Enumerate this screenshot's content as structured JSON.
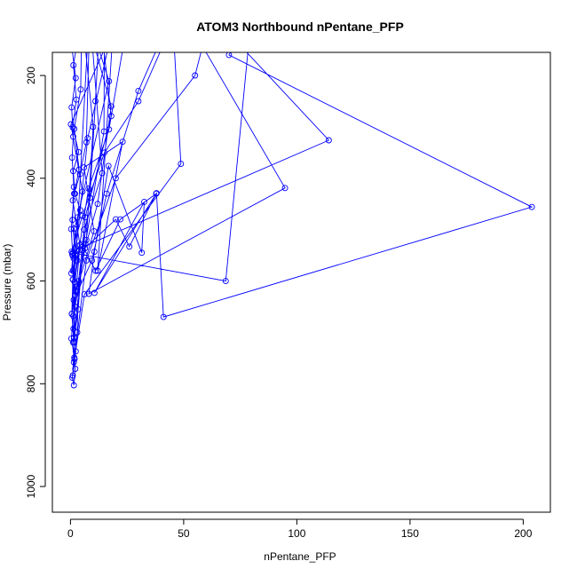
{
  "chart_data": {
    "type": "line",
    "title": "ATOM3 Northbound nPentane_PFP",
    "xlabel": "nPentane_PFP",
    "ylabel": "Pressure (mbar)",
    "xlim": [
      -8,
      212
    ],
    "ylim": [
      1050,
      155
    ],
    "y_reversed": true,
    "x_ticks": [
      0,
      50,
      100,
      150,
      200
    ],
    "y_ticks": [
      200,
      400,
      600,
      800,
      1000
    ],
    "grid": false,
    "legend": "none",
    "series": [
      {
        "color": "#0000ff",
        "marker": "open-circle",
        "points": [
          [
            0.3,
            135
          ],
          [
            2.3,
            205
          ],
          [
            0.5,
            262
          ],
          [
            1.2,
            319
          ],
          [
            0.7,
            360
          ],
          [
            1.5,
            417
          ],
          [
            0.9,
            481
          ],
          [
            2.0,
            548
          ],
          [
            1.0,
            597
          ],
          [
            0.6,
            664
          ],
          [
            1.4,
            718
          ],
          [
            2.1,
            771
          ],
          [
            1.5,
            803
          ],
          [
            0.8,
            788
          ],
          [
            1.8,
            752
          ],
          [
            0.4,
            712
          ],
          [
            1.2,
            668
          ],
          [
            2.4,
            620
          ],
          [
            1.0,
            580
          ],
          [
            2.5,
            540
          ],
          [
            1.6,
            498
          ],
          [
            4.3,
            462
          ],
          [
            2.0,
            430
          ],
          [
            1.2,
            386
          ],
          [
            3.6,
            349
          ],
          [
            1.0,
            301
          ],
          [
            2.6,
            247
          ],
          [
            1.3,
            180
          ],
          [
            5.0,
            80
          ],
          [
            4.5,
            227
          ],
          [
            1.7,
            304
          ],
          [
            3.8,
            383
          ],
          [
            1.0,
            443
          ],
          [
            4.2,
            530
          ],
          [
            2.6,
            611
          ],
          [
            1.3,
            693
          ],
          [
            1.7,
            749
          ],
          [
            3.0,
            700
          ],
          [
            3.6,
            600
          ],
          [
            6.0,
            500
          ],
          [
            14.0,
            390
          ],
          [
            9.0,
            100
          ],
          [
            17.0,
            211
          ],
          [
            3.1,
            476
          ],
          [
            1.4,
            556
          ],
          [
            2.0,
            627
          ],
          [
            10.4,
            503
          ],
          [
            6.0,
            379
          ],
          [
            23.0,
            329
          ],
          [
            12.0,
            580
          ],
          [
            19.0,
            100
          ],
          [
            7.6,
            322
          ],
          [
            1.1,
            597
          ],
          [
            2.3,
            737
          ],
          [
            1.0,
            784
          ],
          [
            1.6,
            710
          ],
          [
            5.5,
            540
          ],
          [
            8.6,
            438
          ],
          [
            11.0,
            250
          ],
          [
            13.0,
            80
          ],
          [
            18.0,
            279
          ],
          [
            6.5,
            476
          ],
          [
            3.4,
            655
          ],
          [
            1.2,
            720
          ],
          [
            2.0,
            650
          ],
          [
            7.0,
            520
          ],
          [
            10.0,
            300
          ],
          [
            6.0,
            120
          ],
          [
            15.0,
            80
          ],
          [
            14.8,
            309
          ],
          [
            6.6,
            528
          ],
          [
            0.6,
            664
          ],
          [
            3.0,
            560
          ],
          [
            8.0,
            420
          ],
          [
            17.0,
            305
          ],
          [
            25.0,
            100
          ],
          [
            22.0,
            80
          ],
          [
            0.2,
            295
          ],
          [
            5.3,
            426
          ],
          [
            0.8,
            548
          ],
          [
            1.4,
            637
          ],
          [
            9.5,
            560
          ],
          [
            16.0,
            430
          ],
          [
            30.0,
            230
          ],
          [
            45.0,
            80
          ],
          [
            48.8,
            372
          ],
          [
            6.2,
            626
          ],
          [
            1.5,
            758
          ],
          [
            7.0,
            560
          ],
          [
            20.0,
            400
          ],
          [
            55.0,
            200
          ],
          [
            62.0,
            80
          ],
          [
            114.1,
            326
          ],
          [
            0.5,
            543
          ],
          [
            5.3,
            473
          ],
          [
            15.0,
            350
          ],
          [
            30.0,
            250
          ],
          [
            45.0,
            100
          ],
          [
            50.0,
            80
          ],
          [
            94.8,
            419
          ],
          [
            8.1,
            625
          ],
          [
            10.6,
            543
          ],
          [
            16.8,
            376
          ],
          [
            31.5,
            545
          ],
          [
            32.6,
            446
          ],
          [
            10.6,
            623
          ],
          [
            38.0,
            429
          ],
          [
            41.1,
            670
          ],
          [
            203.8,
            456
          ],
          [
            70.0,
            160
          ],
          [
            80.0,
            80
          ],
          [
            68.6,
            600
          ],
          [
            1.0,
            545
          ],
          [
            4.9,
            528
          ],
          [
            11.1,
            580
          ],
          [
            22.0,
            480
          ],
          [
            37.9,
            430
          ],
          [
            26.0,
            533
          ],
          [
            20.0,
            480
          ],
          [
            6.4,
            536
          ],
          [
            12.0,
            450
          ],
          [
            18.0,
            260
          ],
          [
            8.0,
            100
          ],
          [
            1.8,
            602
          ],
          [
            4.0,
            540
          ],
          [
            0.4,
            585
          ],
          [
            1.0,
            551
          ],
          [
            0.3,
            499
          ],
          [
            1.6,
            430
          ],
          [
            4.2,
            392
          ],
          [
            7.0,
            330
          ],
          [
            8.5,
            80
          ]
        ]
      }
    ]
  }
}
